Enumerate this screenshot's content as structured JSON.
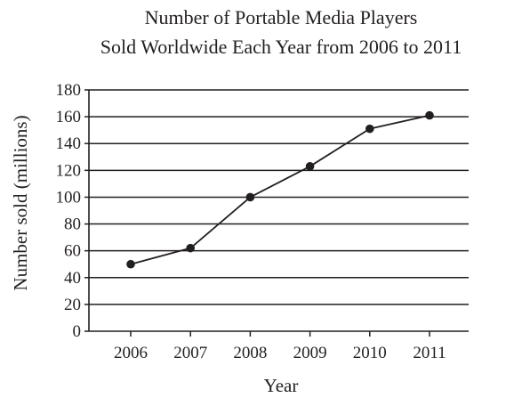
{
  "chart_data": {
    "type": "line",
    "title_lines": [
      "Number of Portable Media Players",
      "Sold Worldwide Each Year from 2006 to 2011"
    ],
    "xlabel": "Year",
    "ylabel": "Number sold (millions)",
    "x": [
      "2006",
      "2007",
      "2008",
      "2009",
      "2010",
      "2011"
    ],
    "series": [
      {
        "values": [
          50,
          62,
          100,
          123,
          151,
          161
        ]
      }
    ],
    "ylim": [
      0,
      180
    ],
    "yticks": [
      0,
      20,
      40,
      60,
      80,
      100,
      120,
      140,
      160,
      180
    ],
    "grid": "horizontal",
    "legend": "none",
    "colors": {
      "line": "#231f20",
      "grid": "#231f20",
      "text": "#231f20"
    }
  }
}
